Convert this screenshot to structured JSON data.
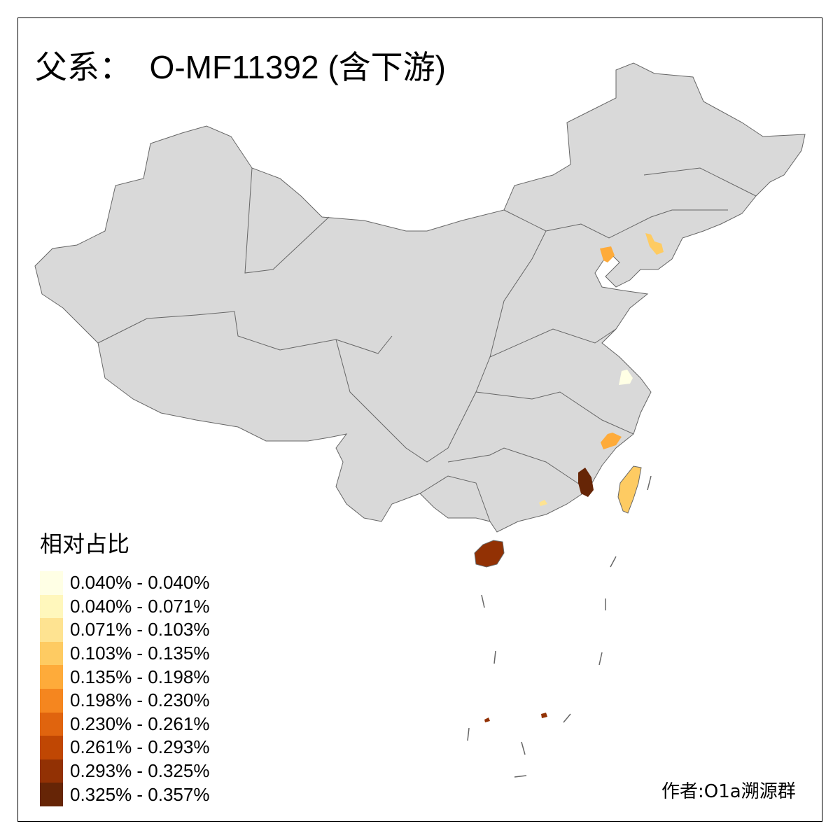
{
  "title": "父系：  O-MF11392 (含下游)",
  "legend": {
    "title": "相对占比",
    "items": [
      {
        "label": "0.040% - 0.040%",
        "color": "#FFFFE5"
      },
      {
        "label": "0.040% - 0.071%",
        "color": "#FFF7BC"
      },
      {
        "label": "0.071% - 0.103%",
        "color": "#FEE391"
      },
      {
        "label": "0.103% - 0.135%",
        "color": "#FECB62"
      },
      {
        "label": "0.135% - 0.198%",
        "color": "#FEAB3A"
      },
      {
        "label": "0.198% - 0.230%",
        "color": "#F5861F"
      },
      {
        "label": "0.230% - 0.261%",
        "color": "#E0640E"
      },
      {
        "label": "0.261% - 0.293%",
        "color": "#C04703"
      },
      {
        "label": "0.293% - 0.325%",
        "color": "#923104"
      },
      {
        "label": "0.325% - 0.357%",
        "color": "#662506"
      }
    ]
  },
  "credit": "作者:O1a溯源群",
  "colors": {
    "base_fill": "#D9D9D9",
    "border": "#666666"
  }
}
